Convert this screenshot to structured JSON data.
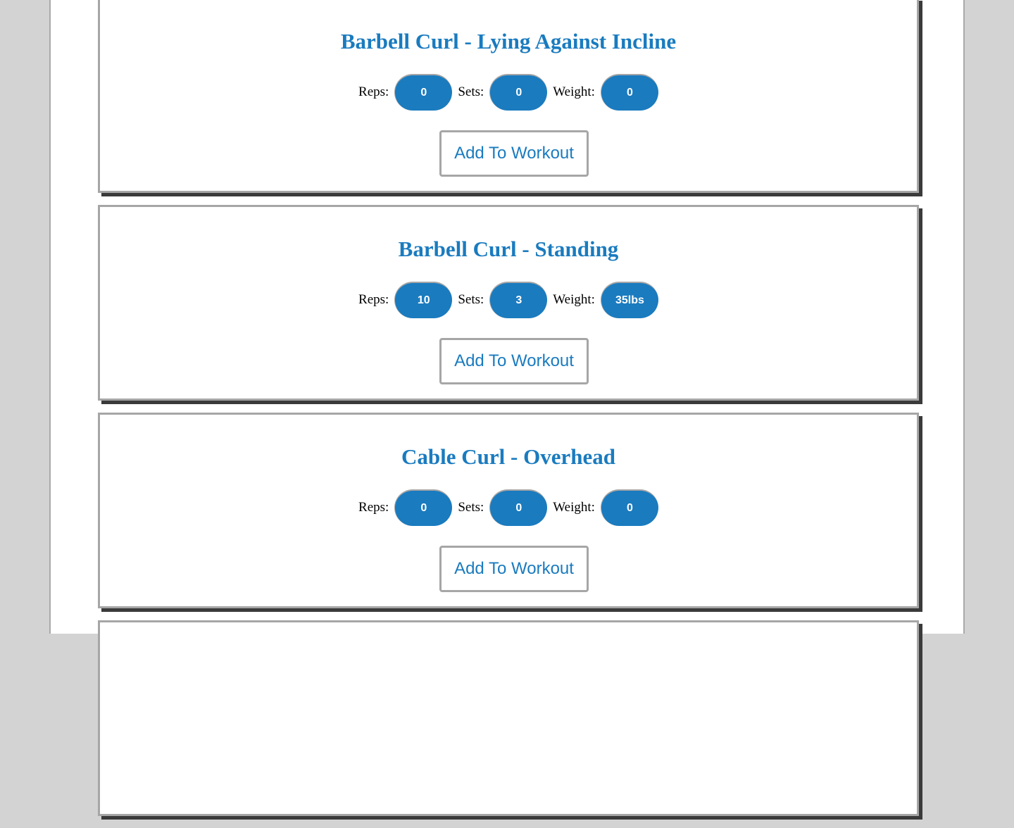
{
  "exercises": [
    {
      "title": "Barbell Curl - Lying Against Incline",
      "reps_label": "Reps:",
      "reps": "0",
      "sets_label": "Sets:",
      "sets": "0",
      "weight_label": "Weight:",
      "weight": "0",
      "add_label": "Add To Workout"
    },
    {
      "title": "Barbell Curl - Standing",
      "reps_label": "Reps:",
      "reps": "10",
      "sets_label": "Sets:",
      "sets": "3",
      "weight_label": "Weight:",
      "weight": "35lbs",
      "add_label": "Add To Workout"
    },
    {
      "title": "Cable Curl - Overhead",
      "reps_label": "Reps:",
      "reps": "0",
      "sets_label": "Sets:",
      "sets": "0",
      "weight_label": "Weight:",
      "weight": "0",
      "add_label": "Add To Workout"
    },
    {
      "title": "",
      "reps_label": "",
      "reps": "",
      "sets_label": "",
      "sets": "",
      "weight_label": "",
      "weight": "",
      "add_label": ""
    }
  ],
  "colors": {
    "accent": "#1a7bbf",
    "border": "#a6a6a6",
    "shadow": "#3a3a3a",
    "page_background": "#d3d3d3"
  }
}
